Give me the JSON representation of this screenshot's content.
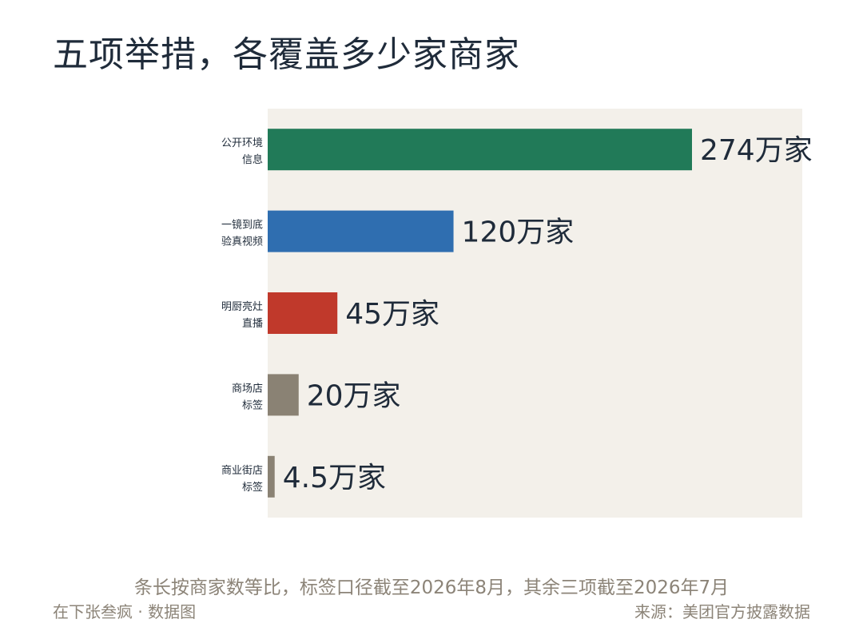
{
  "title": "五项举措，各覆盖多少家商家",
  "chart_data": {
    "type": "bar",
    "orientation": "horizontal",
    "unit": "万家",
    "xlim": [
      0,
      310
    ],
    "grid": false,
    "categories": [
      [
        "公开环境",
        "信息"
      ],
      [
        "一镜到底",
        "验真视频"
      ],
      [
        "明厨亮灶",
        "直播"
      ],
      [
        "商场店",
        "标签"
      ],
      [
        "商业街店",
        "标签"
      ]
    ],
    "values": [
      274,
      120,
      45,
      20,
      4.5
    ],
    "value_labels": [
      "274万家",
      "120万家",
      "45万家",
      "20万家",
      "4.5万家"
    ],
    "colors": [
      "#217a58",
      "#2f6eb0",
      "#c0392b",
      "#8a8274",
      "#8a8274"
    ]
  },
  "footer": {
    "note": "条长按商家数等比，标签口径截至2026年8月，其余三项截至2026年7月",
    "byline": "在下张叁疯 · 数据图",
    "source": "来源：美团官方披露数据"
  },
  "colors": {
    "plot_background": "#f3f0ea",
    "text_dark": "#1f2b3a",
    "text_muted": "#8c8478"
  }
}
